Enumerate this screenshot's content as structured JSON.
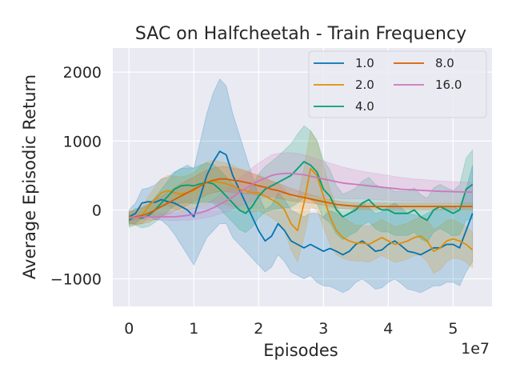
{
  "chart_data": {
    "type": "line",
    "title": "SAC on Halfcheetah - Train Frequency",
    "xlabel": "Episodes",
    "ylabel": "Average Episodic Return",
    "x_offset_text": "1e7",
    "xlim": [
      -0.25,
      5.6
    ],
    "ylim": [
      -1400,
      2350
    ],
    "xticks": [
      0,
      1,
      2,
      3,
      4,
      5
    ],
    "xtick_labels": [
      "0",
      "1",
      "2",
      "3",
      "4",
      "5"
    ],
    "yticks": [
      -1000,
      0,
      1000,
      2000
    ],
    "ytick_labels": [
      "−1000",
      "0",
      "1000",
      "2000"
    ],
    "grid": true,
    "legend_position": "top-right",
    "legend_columns": 2,
    "series": [
      {
        "name": "1.0",
        "color": "#0173b2",
        "x": [
          0,
          0.1,
          0.2,
          0.3,
          0.4,
          0.5,
          0.6,
          0.7,
          0.8,
          0.9,
          1.0,
          1.1,
          1.2,
          1.3,
          1.4,
          1.5,
          1.6,
          1.7,
          1.8,
          1.9,
          2.0,
          2.1,
          2.2,
          2.3,
          2.4,
          2.5,
          2.6,
          2.7,
          2.8,
          2.9,
          3.0,
          3.1,
          3.2,
          3.3,
          3.4,
          3.5,
          3.6,
          3.7,
          3.8,
          3.9,
          4.0,
          4.1,
          4.2,
          4.3,
          4.4,
          4.5,
          4.6,
          4.7,
          4.8,
          4.9,
          5.0,
          5.1,
          5.2,
          5.3
        ],
        "values": [
          -100,
          -50,
          100,
          120,
          110,
          150,
          120,
          100,
          50,
          0,
          -100,
          200,
          500,
          700,
          850,
          800,
          500,
          300,
          100,
          -100,
          -300,
          -450,
          -380,
          -200,
          -300,
          -450,
          -500,
          -550,
          -500,
          -550,
          -600,
          -560,
          -600,
          -650,
          -600,
          -500,
          -450,
          -520,
          -600,
          -580,
          -500,
          -450,
          -520,
          -600,
          -620,
          -650,
          -600,
          -550,
          -550,
          -500,
          -500,
          -550,
          -300,
          -50
        ],
        "band_width": [
          100,
          150,
          200,
          200,
          250,
          300,
          350,
          450,
          550,
          650,
          700,
          800,
          900,
          1000,
          1050,
          1000,
          900,
          800,
          700,
          600,
          500,
          450,
          450,
          450,
          450,
          450,
          450,
          450,
          450,
          500,
          500,
          550,
          550,
          550,
          550,
          550,
          550,
          550,
          550,
          550,
          550,
          550,
          550,
          550,
          550,
          550,
          550,
          550,
          550,
          550,
          550,
          550,
          600,
          700
        ]
      },
      {
        "name": "2.0",
        "color": "#de8f05",
        "x": [
          0,
          0.1,
          0.2,
          0.3,
          0.4,
          0.5,
          0.6,
          0.7,
          0.8,
          0.9,
          1.0,
          1.1,
          1.2,
          1.3,
          1.4,
          1.5,
          1.6,
          1.7,
          1.8,
          1.9,
          2.0,
          2.1,
          2.2,
          2.3,
          2.4,
          2.5,
          2.6,
          2.7,
          2.8,
          2.9,
          3.0,
          3.1,
          3.2,
          3.3,
          3.4,
          3.5,
          3.6,
          3.7,
          3.8,
          3.9,
          4.0,
          4.1,
          4.2,
          4.3,
          4.4,
          4.5,
          4.6,
          4.7,
          4.8,
          4.9,
          5.0,
          5.1,
          5.2,
          5.3
        ],
        "values": [
          -100,
          -120,
          -80,
          50,
          150,
          250,
          280,
          250,
          230,
          250,
          280,
          350,
          400,
          420,
          400,
          380,
          350,
          300,
          280,
          250,
          250,
          200,
          150,
          100,
          0,
          -200,
          -300,
          100,
          600,
          500,
          200,
          -100,
          -300,
          -400,
          -450,
          -480,
          -480,
          -500,
          -450,
          -400,
          -450,
          -500,
          -480,
          -450,
          -400,
          -380,
          -450,
          -600,
          -550,
          -450,
          -420,
          -450,
          -500,
          -580
        ],
        "band_width": [
          80,
          100,
          120,
          150,
          180,
          200,
          220,
          240,
          250,
          250,
          260,
          280,
          300,
          300,
          300,
          300,
          300,
          300,
          300,
          280,
          260,
          260,
          260,
          280,
          300,
          380,
          450,
          500,
          550,
          500,
          450,
          400,
          350,
          300,
          280,
          260,
          260,
          260,
          260,
          260,
          260,
          260,
          260,
          260,
          260,
          280,
          300,
          320,
          320,
          300,
          280,
          260,
          260,
          260
        ]
      },
      {
        "name": "4.0",
        "color": "#029e73",
        "x": [
          0,
          0.1,
          0.2,
          0.3,
          0.4,
          0.5,
          0.6,
          0.7,
          0.8,
          0.9,
          1.0,
          1.1,
          1.2,
          1.3,
          1.4,
          1.5,
          1.6,
          1.7,
          1.8,
          1.9,
          2.0,
          2.1,
          2.2,
          2.3,
          2.4,
          2.5,
          2.6,
          2.7,
          2.8,
          2.9,
          3.0,
          3.1,
          3.2,
          3.3,
          3.4,
          3.5,
          3.6,
          3.7,
          3.8,
          3.9,
          4.0,
          4.1,
          4.2,
          4.3,
          4.4,
          4.5,
          4.6,
          4.7,
          4.8,
          4.9,
          5.0,
          5.1,
          5.2,
          5.3
        ],
        "values": [
          -150,
          -100,
          -120,
          -80,
          0,
          100,
          200,
          300,
          350,
          360,
          350,
          380,
          400,
          380,
          300,
          200,
          100,
          0,
          -50,
          50,
          200,
          300,
          350,
          400,
          450,
          500,
          600,
          700,
          650,
          550,
          300,
          200,
          0,
          -100,
          -50,
          0,
          100,
          150,
          50,
          0,
          0,
          -50,
          -50,
          -50,
          0,
          -100,
          -150,
          0,
          50,
          0,
          -50,
          0,
          300,
          370
        ],
        "band_width": [
          100,
          120,
          140,
          160,
          180,
          200,
          220,
          240,
          250,
          250,
          260,
          270,
          280,
          280,
          280,
          280,
          280,
          280,
          280,
          300,
          320,
          330,
          350,
          380,
          420,
          460,
          500,
          520,
          500,
          460,
          420,
          380,
          350,
          330,
          320,
          320,
          320,
          320,
          320,
          320,
          320,
          320,
          320,
          320,
          320,
          320,
          320,
          320,
          320,
          320,
          330,
          360,
          450,
          500
        ]
      },
      {
        "name": "8.0",
        "color": "#d55e00",
        "x": [
          0,
          0.1,
          0.2,
          0.3,
          0.4,
          0.5,
          0.6,
          0.7,
          0.8,
          0.9,
          1.0,
          1.1,
          1.2,
          1.3,
          1.4,
          1.5,
          1.6,
          1.7,
          1.8,
          1.9,
          2.0,
          2.1,
          2.2,
          2.3,
          2.4,
          2.5,
          2.6,
          2.7,
          2.8,
          2.9,
          3.0,
          3.1,
          3.2,
          3.3,
          3.4,
          3.5,
          3.6,
          3.7,
          3.8,
          3.9,
          4.0,
          4.1,
          4.2,
          4.3,
          4.4,
          4.5,
          4.6,
          4.7,
          4.8,
          4.9,
          5.0,
          5.1,
          5.2,
          5.3
        ],
        "values": [
          -120,
          -100,
          -80,
          -50,
          0,
          50,
          100,
          150,
          200,
          250,
          300,
          350,
          400,
          430,
          450,
          450,
          430,
          420,
          400,
          380,
          350,
          330,
          300,
          280,
          250,
          220,
          200,
          180,
          160,
          140,
          120,
          100,
          80,
          70,
          60,
          55,
          50,
          50,
          50,
          50,
          50,
          50,
          50,
          50,
          50,
          50,
          50,
          50,
          50,
          50,
          50,
          50,
          50,
          50
        ],
        "band_width": [
          100,
          110,
          120,
          130,
          140,
          150,
          160,
          170,
          180,
          180,
          180,
          180,
          180,
          180,
          180,
          180,
          180,
          170,
          160,
          150,
          140,
          130,
          120,
          110,
          100,
          90,
          80,
          70,
          60,
          55,
          50,
          50,
          50,
          50,
          50,
          50,
          50,
          50,
          50,
          50,
          50,
          50,
          50,
          50,
          50,
          50,
          50,
          50,
          50,
          50,
          50,
          50,
          50,
          50
        ]
      },
      {
        "name": "16.0",
        "color": "#cc78bc",
        "x": [
          0,
          0.1,
          0.2,
          0.3,
          0.4,
          0.5,
          0.6,
          0.7,
          0.8,
          0.9,
          1.0,
          1.1,
          1.2,
          1.3,
          1.4,
          1.5,
          1.6,
          1.7,
          1.8,
          1.9,
          2.0,
          2.1,
          2.2,
          2.3,
          2.4,
          2.5,
          2.6,
          2.7,
          2.8,
          2.9,
          3.0,
          3.1,
          3.2,
          3.3,
          3.4,
          3.5,
          3.6,
          3.7,
          3.8,
          3.9,
          4.0,
          4.1,
          4.2,
          4.3,
          4.4,
          4.5,
          4.6,
          4.7,
          4.8,
          4.9,
          5.0,
          5.1,
          5.2,
          5.3
        ],
        "values": [
          -120,
          -110,
          -100,
          -100,
          -100,
          -100,
          -100,
          -100,
          -90,
          -80,
          -60,
          -40,
          -10,
          30,
          80,
          130,
          190,
          250,
          310,
          370,
          420,
          460,
          500,
          520,
          530,
          530,
          520,
          510,
          490,
          470,
          450,
          430,
          410,
          390,
          380,
          370,
          360,
          350,
          340,
          330,
          320,
          310,
          300,
          295,
          290,
          285,
          280,
          275,
          270,
          268,
          265,
          262,
          260,
          258
        ],
        "band_width": [
          40,
          40,
          40,
          40,
          40,
          45,
          50,
          55,
          60,
          70,
          80,
          90,
          100,
          120,
          140,
          160,
          180,
          200,
          220,
          240,
          260,
          280,
          300,
          300,
          300,
          300,
          300,
          290,
          280,
          270,
          260,
          250,
          240,
          230,
          220,
          210,
          200,
          195,
          190,
          185,
          180,
          175,
          170,
          165,
          160,
          158,
          155,
          152,
          150,
          148,
          146,
          144,
          142,
          140
        ]
      }
    ]
  }
}
